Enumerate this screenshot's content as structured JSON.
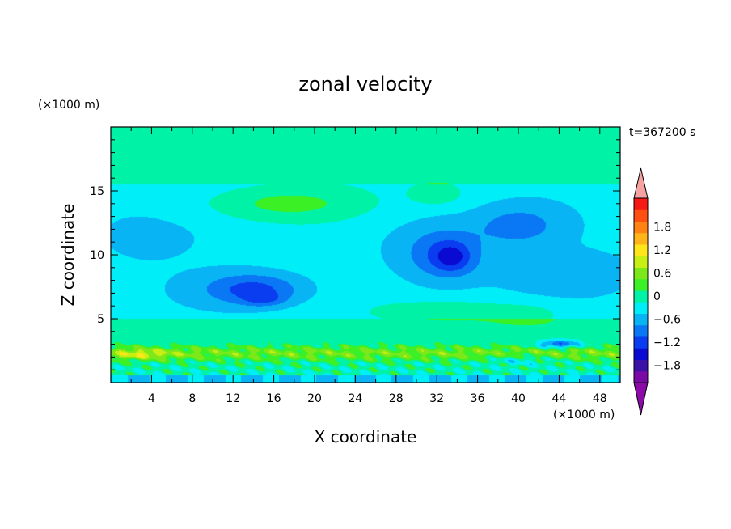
{
  "chart_data": {
    "type": "heatmap",
    "title": "zonal velocity",
    "xlabel": "X coordinate",
    "ylabel": "Z coordinate",
    "x_unit": "(×1000 m)",
    "y_unit": "(×1000 m)",
    "time_label": "t=367200 s",
    "xlim": [
      0,
      50
    ],
    "ylim": [
      0,
      20
    ],
    "xticks": [
      4,
      8,
      12,
      16,
      20,
      24,
      28,
      32,
      36,
      40,
      44,
      48
    ],
    "yticks": [
      5,
      10,
      15
    ],
    "colorbar": {
      "min": -2.1,
      "max": 2.1,
      "step": 0.3,
      "tick_values": [
        1.8,
        1.2,
        0.6,
        0,
        -0.6,
        -1.2,
        -1.8
      ],
      "tick_labels": [
        "1.8",
        "1.2",
        "0.6",
        "0",
        "−0.6",
        "−1.2",
        "−1.8"
      ],
      "colors": [
        "#7a0aa6",
        "#3a12a8",
        "#0a0ad2",
        "#0a3cf0",
        "#0a78f5",
        "#09b4f5",
        "#00eef8",
        "#00f2a6",
        "#3cf026",
        "#7ce81a",
        "#c8ee14",
        "#ffe61a",
        "#ffb41a",
        "#ff8214",
        "#ff5012",
        "#f51a14",
        "#f4a2a2"
      ],
      "under_color": "#8c0aa8",
      "over_color": "#f4a2a2"
    },
    "features": [
      {
        "x": 17,
        "z": 14.0,
        "sx": 8.0,
        "sz": 1.4,
        "value": 0.55
      },
      {
        "x": 32,
        "z": 14.8,
        "sx": 2.5,
        "sz": 0.9,
        "value": 0.45
      },
      {
        "x": 30,
        "z": 10.5,
        "sx": 6.0,
        "sz": 3.0,
        "value": -0.25
      },
      {
        "x": 33,
        "z": 10.0,
        "sx": 3.5,
        "sz": 2.0,
        "value": -0.65
      },
      {
        "x": 40,
        "z": 12.3,
        "sx": 4.0,
        "sz": 1.5,
        "value": -0.55
      },
      {
        "x": 33.5,
        "z": 9.8,
        "sx": 1.6,
        "sz": 1.0,
        "value": -0.5
      },
      {
        "x": 14,
        "z": 7.3,
        "sx": 5.0,
        "sz": 1.3,
        "value": -0.85
      },
      {
        "x": 15,
        "z": 6.5,
        "sx": 2.0,
        "sz": 0.5,
        "value": -0.4
      },
      {
        "x": 4,
        "z": 11.5,
        "sx": 6.0,
        "sz": 2.0,
        "value": -0.1
      },
      {
        "x": 44,
        "z": 8.5,
        "sx": 6.0,
        "sz": 1.5,
        "value": -0.3
      },
      {
        "x": 34,
        "z": 5.6,
        "sx": 8.0,
        "sz": 1.0,
        "value": 0.35
      },
      {
        "x": 41,
        "z": 5.2,
        "sx": 3.0,
        "sz": 0.8,
        "value": 0.35
      },
      {
        "x": 40,
        "z": 1.8,
        "sx": 3.0,
        "sz": 0.4,
        "value": -0.4
      },
      {
        "x": 44,
        "z": 3.0,
        "sx": 2.0,
        "sz": 0.3,
        "value": -1.1
      },
      {
        "x": 3,
        "z": 2.2,
        "sx": 3.0,
        "sz": 0.4,
        "value": 0.5
      }
    ]
  }
}
